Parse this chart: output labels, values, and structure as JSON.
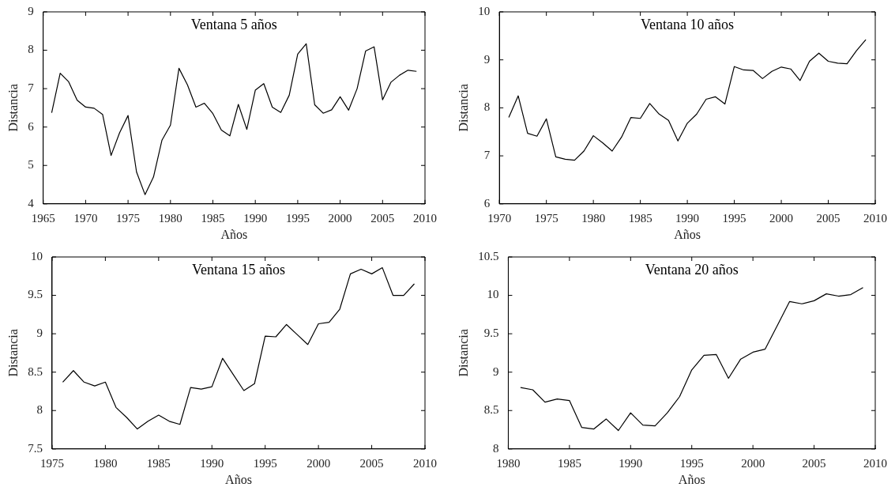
{
  "chart_data": [
    {
      "type": "line",
      "title": "Ventana 5 años",
      "xlabel": "Años",
      "ylabel": "Distancia",
      "xlim": [
        1965,
        2010
      ],
      "xticks": [
        1965,
        1970,
        1975,
        1980,
        1985,
        1990,
        1995,
        2000,
        2005,
        2010
      ],
      "ylim": [
        4,
        9
      ],
      "yticks": [
        4,
        5,
        6,
        7,
        8,
        9
      ],
      "x": [
        1966,
        1967,
        1968,
        1969,
        1970,
        1971,
        1972,
        1973,
        1974,
        1975,
        1976,
        1977,
        1978,
        1979,
        1980,
        1981,
        1982,
        1983,
        1984,
        1985,
        1986,
        1987,
        1988,
        1989,
        1990,
        1991,
        1992,
        1993,
        1994,
        1995,
        1996,
        1997,
        1998,
        1999,
        2000,
        2001,
        2002,
        2003,
        2004,
        2005,
        2006,
        2007,
        2008,
        2009
      ],
      "series": [
        {
          "color": "#000000",
          "values": [
            6.37,
            7.4,
            7.18,
            6.7,
            6.52,
            6.49,
            6.33,
            5.26,
            5.85,
            6.3,
            4.83,
            4.24,
            4.7,
            5.66,
            6.05,
            7.53,
            7.1,
            6.52,
            6.62,
            6.35,
            5.92,
            5.77,
            6.59,
            5.94,
            6.96,
            7.13,
            6.52,
            6.38,
            6.83,
            7.9,
            8.17,
            6.58,
            6.36,
            6.45,
            6.79,
            6.44,
            7.0,
            7.98,
            8.09,
            6.71,
            7.17,
            7.35,
            7.48,
            7.45
          ]
        }
      ]
    },
    {
      "type": "line",
      "title": "Ventana 10 años",
      "xlabel": "Años",
      "ylabel": "Distancia",
      "xlim": [
        1970,
        2010
      ],
      "xticks": [
        1970,
        1975,
        1980,
        1985,
        1990,
        1995,
        2000,
        2005,
        2010
      ],
      "ylim": [
        6,
        10
      ],
      "yticks": [
        6,
        7,
        8,
        9,
        10
      ],
      "x": [
        1971,
        1972,
        1973,
        1974,
        1975,
        1976,
        1977,
        1978,
        1979,
        1980,
        1981,
        1982,
        1983,
        1984,
        1985,
        1986,
        1987,
        1988,
        1989,
        1990,
        1991,
        1992,
        1993,
        1994,
        1995,
        1996,
        1997,
        1998,
        1999,
        2000,
        2001,
        2002,
        2003,
        2004,
        2005,
        2006,
        2007,
        2008,
        2009
      ],
      "series": [
        {
          "color": "#000000",
          "values": [
            7.8,
            8.25,
            7.47,
            7.41,
            7.77,
            6.98,
            6.93,
            6.91,
            7.1,
            7.42,
            7.27,
            7.1,
            7.39,
            7.8,
            7.78,
            8.09,
            7.87,
            7.74,
            7.31,
            7.68,
            7.87,
            8.18,
            8.23,
            8.08,
            8.86,
            8.79,
            8.78,
            8.61,
            8.76,
            8.85,
            8.81,
            8.57,
            8.97,
            9.14,
            8.97,
            8.93,
            8.92,
            9.19,
            9.42
          ]
        }
      ]
    },
    {
      "type": "line",
      "title": "Ventana 15 años",
      "xlabel": "Años",
      "ylabel": "Distancia",
      "xlim": [
        1975,
        2010
      ],
      "xticks": [
        1975,
        1980,
        1985,
        1990,
        1995,
        2000,
        2005,
        2010
      ],
      "ylim": [
        7.5,
        10
      ],
      "yticks": [
        7.5,
        8,
        8.5,
        9,
        9.5,
        10
      ],
      "x": [
        1976,
        1977,
        1978,
        1979,
        1980,
        1981,
        1982,
        1983,
        1984,
        1985,
        1986,
        1987,
        1988,
        1989,
        1990,
        1991,
        1992,
        1993,
        1994,
        1995,
        1996,
        1997,
        1998,
        1999,
        2000,
        2001,
        2002,
        2003,
        2004,
        2005,
        2006,
        2007,
        2008,
        2009
      ],
      "series": [
        {
          "color": "#000000",
          "values": [
            8.37,
            8.52,
            8.37,
            8.32,
            8.37,
            8.04,
            7.91,
            7.76,
            7.86,
            7.94,
            7.86,
            7.82,
            8.3,
            8.28,
            8.31,
            8.68,
            8.47,
            8.26,
            8.35,
            8.97,
            8.96,
            9.12,
            8.99,
            8.86,
            9.13,
            9.15,
            9.32,
            9.78,
            9.84,
            9.78,
            9.86,
            9.5,
            9.5,
            9.65
          ]
        }
      ]
    },
    {
      "type": "line",
      "title": "Ventana 20 años",
      "xlabel": "Años",
      "ylabel": "Distancia",
      "xlim": [
        1980,
        2010
      ],
      "xticks": [
        1980,
        1985,
        1990,
        1995,
        2000,
        2005,
        2010
      ],
      "ylim": [
        8,
        10.5
      ],
      "yticks": [
        8,
        8.5,
        9,
        9.5,
        10,
        10.5
      ],
      "x": [
        1981,
        1982,
        1983,
        1984,
        1985,
        1986,
        1987,
        1988,
        1989,
        1990,
        1991,
        1992,
        1993,
        1994,
        1995,
        1996,
        1997,
        1998,
        1999,
        2000,
        2001,
        2002,
        2003,
        2004,
        2005,
        2006,
        2007,
        2008,
        2009
      ],
      "series": [
        {
          "color": "#000000",
          "values": [
            8.8,
            8.77,
            8.61,
            8.65,
            8.63,
            8.28,
            8.26,
            8.39,
            8.24,
            8.47,
            8.31,
            8.3,
            8.47,
            8.68,
            9.03,
            9.22,
            9.23,
            8.92,
            9.17,
            9.26,
            9.3,
            9.61,
            9.92,
            9.89,
            9.93,
            10.02,
            9.99,
            10.01,
            10.1
          ]
        }
      ]
    }
  ]
}
